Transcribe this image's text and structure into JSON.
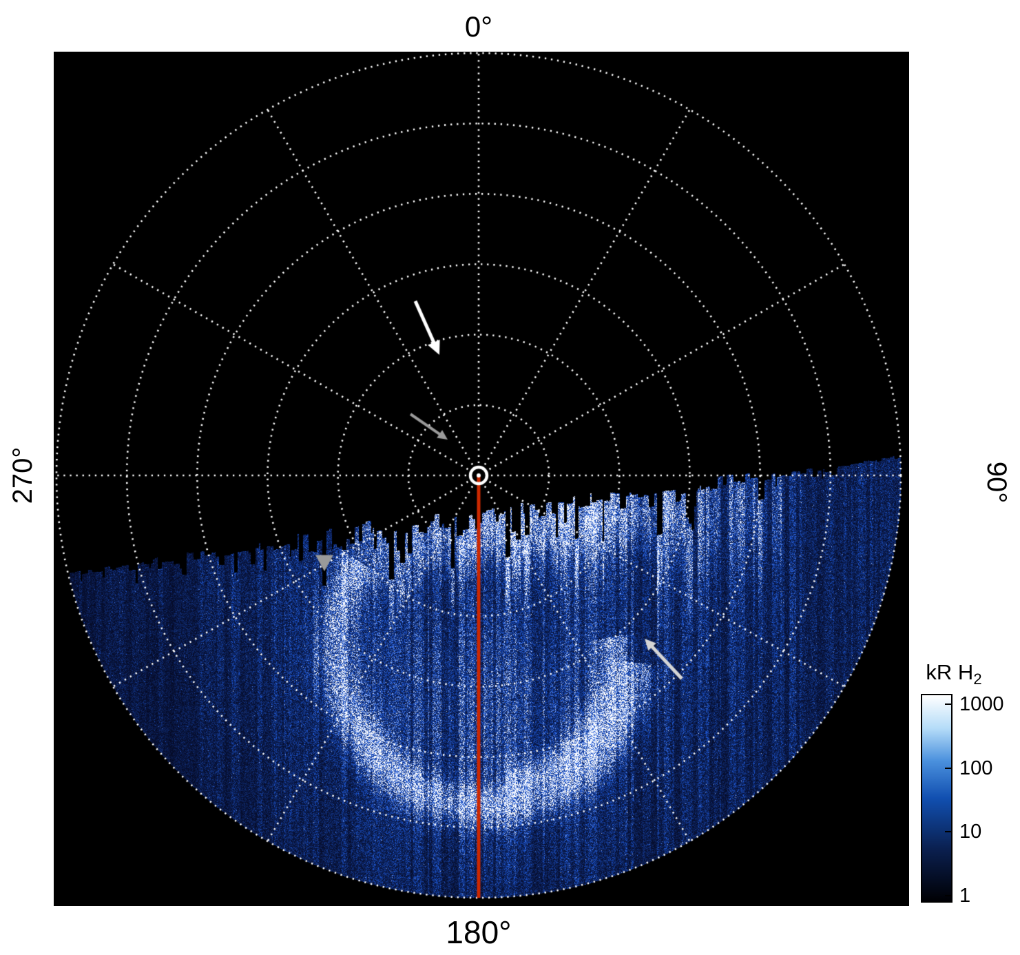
{
  "labels": {
    "top": "0°",
    "right": "90°",
    "bottom": "180°",
    "left": "270°"
  },
  "colorbar": {
    "title_main": "kR H",
    "title_sub": "2",
    "ticks": [
      "1000",
      "100",
      "10",
      "1"
    ]
  },
  "colors": {
    "page_background": "#ffffff",
    "plot_background": "#000000",
    "grid": "#ffffff",
    "meridian": "#cc2800",
    "center_marker": "#ffffff"
  },
  "chart_data": {
    "type": "heatmap",
    "projection": "polar",
    "title": "",
    "description": "Polar-projection map of H2 auroral emission brightness; observed data fills only the lower sector (~95°-265° azimuth) with a ragged terminator through the pole, black (no data) elsewhere. A bright partial auroral oval arc crosses the lower half with diffuse blue speckle around it.",
    "angular_tick_labels": [
      "0°",
      "90°",
      "180°",
      "270°"
    ],
    "angular_tick_positions_deg": [
      0,
      90,
      180,
      270
    ],
    "data_sector_deg": [
      95,
      265
    ],
    "grid": {
      "radial_circles": 6,
      "spoke_spacing_deg": 30,
      "style": "dotted",
      "color": "#ffffff"
    },
    "meridian_line": {
      "azimuth_deg": 180,
      "from": "pole",
      "to": "outer_edge",
      "color": "#cc2800"
    },
    "colorbar": {
      "label": "kR H2",
      "scale": "log",
      "min": 1,
      "max": 1000,
      "tick_values": [
        1000,
        100,
        10,
        1
      ],
      "colormap": [
        "#000004 0%",
        "#0a1f4e 25%",
        "#114fb0 50%",
        "#4a90dd 68%",
        "#b5dcf8 84%",
        "#ffffff 100%"
      ]
    },
    "features": [
      "bright emission patch just below map center",
      "bright partial auroral oval arc through lower half",
      "diffuse blue speckle filling observed sector",
      "ragged comb-like data boundary near the pole"
    ],
    "annotations": [
      {
        "type": "arrow",
        "from": [
          525,
          362
        ],
        "to": [
          560,
          440
        ],
        "color": "#ffffff",
        "width": 5,
        "head": 22
      },
      {
        "type": "arrow",
        "from": [
          518,
          526
        ],
        "to": [
          572,
          563
        ],
        "color": "#9a9a9a",
        "width": 4,
        "head": 16
      },
      {
        "type": "arrow",
        "from": [
          912,
          910
        ],
        "to": [
          858,
          852
        ],
        "color": "#d5d5d5",
        "width": 5,
        "head": 18
      },
      {
        "type": "triangle-marker",
        "at": [
          393,
          741
        ],
        "size": 13,
        "color": "#9a9a9a"
      }
    ]
  }
}
